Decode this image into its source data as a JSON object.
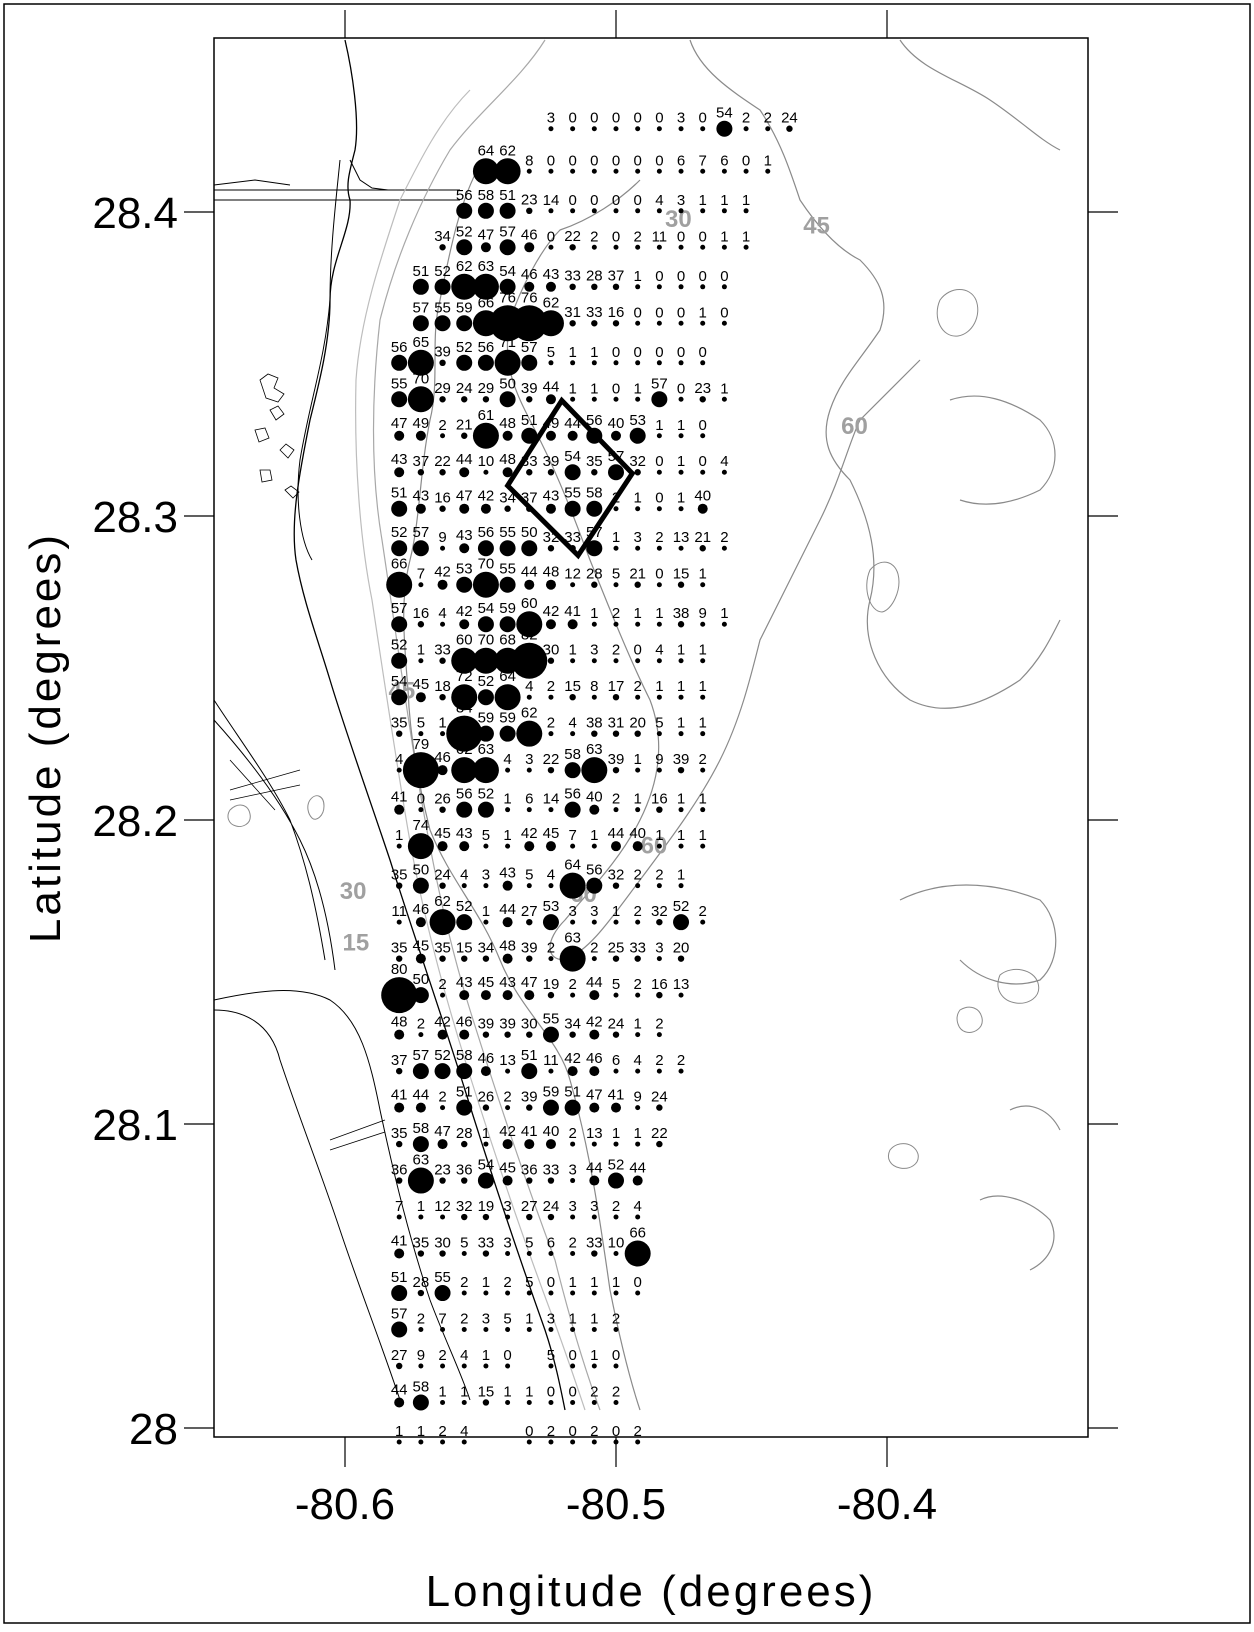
{
  "chart_data": {
    "type": "scatter",
    "title": "",
    "xlabel": "Longitude (degrees)",
    "ylabel": "Latitude (degrees)",
    "xlim": [
      -80.65,
      -80.33
    ],
    "ylim": [
      27.99,
      28.46
    ],
    "xticks": [
      {
        "value": -80.6,
        "label": "-80.6"
      },
      {
        "value": -80.5,
        "label": "-80.5"
      },
      {
        "value": -80.4,
        "label": "-80.4"
      }
    ],
    "yticks": [
      {
        "value": 28.4,
        "label": "28.4"
      },
      {
        "value": 28.3,
        "label": "28.3"
      },
      {
        "value": 28.2,
        "label": "28.2"
      },
      {
        "value": 28.1,
        "label": "28.1"
      },
      {
        "value": 28,
        "label": "28"
      }
    ],
    "grid": false,
    "marker_sizing": "marker size increases with value",
    "contour_levels": [
      {
        "label": "15",
        "lon": -80.596,
        "lat": 28.157
      },
      {
        "label": "30",
        "lon": -80.597,
        "lat": 28.174
      },
      {
        "label": "45",
        "lon": -80.579,
        "lat": 28.24
      },
      {
        "label": "60",
        "lon": -80.512,
        "lat": 28.173
      },
      {
        "label": "60",
        "lon": -80.486,
        "lat": 28.189
      },
      {
        "label": "30",
        "lon": -80.477,
        "lat": 28.395
      },
      {
        "label": "45",
        "lon": -80.426,
        "lat": 28.393
      },
      {
        "label": "60",
        "lon": -80.412,
        "lat": 28.327
      }
    ],
    "highlight_box": [
      {
        "lon": -80.52,
        "lat": 28.338
      },
      {
        "lon": -80.494,
        "lat": 28.314
      },
      {
        "lon": -80.514,
        "lat": 28.287
      },
      {
        "lon": -80.54,
        "lat": 28.31
      }
    ],
    "stations": [
      {
        "lat": 28.432,
        "cols": [
          "",
          "",
          "",
          "",
          "",
          "",
          "",
          "3",
          "0",
          "0",
          "0",
          "0",
          "0",
          "3",
          "0",
          "54",
          "2",
          "2",
          "24"
        ]
      },
      {
        "lat": 28.418,
        "cols": [
          "",
          "",
          "",
          "",
          "64",
          "62",
          "8",
          "0",
          "0",
          "0",
          "0",
          "0",
          "0",
          "6",
          "7",
          "6",
          "0",
          "1"
        ]
      },
      {
        "lat": 28.405,
        "cols": [
          "",
          "",
          "",
          "56",
          "58",
          "51",
          "23",
          "14",
          "0",
          "0",
          "0",
          "0",
          "4",
          "3",
          "1",
          "1",
          "1"
        ]
      },
      {
        "lat": 28.393,
        "cols": [
          "",
          "",
          "34",
          "52",
          "47",
          "57",
          "46",
          "0",
          "22",
          "2",
          "0",
          "2",
          "11",
          "0",
          "0",
          "1",
          "1"
        ]
      },
      {
        "lat": 28.38,
        "cols": [
          "",
          "51",
          "52",
          "62",
          "63",
          "54",
          "46",
          "43",
          "33",
          "28",
          "37",
          "1",
          "0",
          "0",
          "0",
          "0"
        ]
      },
      {
        "lat": 28.368,
        "cols": [
          "",
          "57",
          "55",
          "59",
          "66",
          "76",
          "76",
          "62",
          "31",
          "33",
          "16",
          "0",
          "0",
          "0",
          "1",
          "0"
        ]
      },
      {
        "lat": 28.355,
        "cols": [
          "56",
          "65",
          "39",
          "52",
          "56",
          "71",
          "57",
          "5",
          "1",
          "1",
          "0",
          "0",
          "0",
          "0",
          "0"
        ]
      },
      {
        "lat": 28.343,
        "cols": [
          "55",
          "70",
          "29",
          "24",
          "29",
          "50",
          "39",
          "44",
          "1",
          "1",
          "0",
          "1",
          "57",
          "0",
          "23",
          "1"
        ]
      },
      {
        "lat": 28.331,
        "cols": [
          "47",
          "49",
          "2",
          "21",
          "61",
          "48",
          "51",
          "49",
          "44",
          "56",
          "40",
          "53",
          "1",
          "1",
          "0"
        ]
      },
      {
        "lat": 28.319,
        "cols": [
          "43",
          "37",
          "22",
          "44",
          "10",
          "48",
          "33",
          "39",
          "54",
          "35",
          "57",
          "32",
          "0",
          "1",
          "0",
          "4"
        ]
      },
      {
        "lat": 28.307,
        "cols": [
          "51",
          "43",
          "16",
          "47",
          "42",
          "34",
          "37",
          "43",
          "55",
          "58",
          "2",
          "1",
          "0",
          "1",
          "40"
        ]
      },
      {
        "lat": 28.294,
        "cols": [
          "52",
          "57",
          "9",
          "43",
          "56",
          "55",
          "50",
          "32",
          "33",
          "57",
          "1",
          "3",
          "2",
          "13",
          "21",
          "2"
        ]
      },
      {
        "lat": 28.282,
        "cols": [
          "66",
          "7",
          "42",
          "53",
          "70",
          "55",
          "44",
          "48",
          "12",
          "28",
          "5",
          "21",
          "0",
          "15",
          "1"
        ]
      },
      {
        "lat": 28.269,
        "cols": [
          "57",
          "16",
          "4",
          "42",
          "54",
          "59",
          "60",
          "42",
          "41",
          "1",
          "2",
          "1",
          "1",
          "38",
          "9",
          "1"
        ]
      },
      {
        "lat": 28.257,
        "cols": [
          "52",
          "1",
          "33",
          "60",
          "70",
          "68",
          "82",
          "30",
          "1",
          "3",
          "2",
          "0",
          "4",
          "1",
          "1"
        ]
      },
      {
        "lat": 28.245,
        "cols": [
          "54",
          "45",
          "18",
          "72",
          "52",
          "64",
          "4",
          "2",
          "15",
          "8",
          "17",
          "2",
          "1",
          "1",
          "1"
        ]
      },
      {
        "lat": 28.233,
        "cols": [
          "35",
          "5",
          "1",
          "84",
          "59",
          "59",
          "62",
          "2",
          "4",
          "38",
          "31",
          "20",
          "5",
          "1",
          "1"
        ]
      },
      {
        "lat": 28.221,
        "cols": [
          "4",
          "79",
          "46",
          "62",
          "63",
          "4",
          "3",
          "22",
          "58",
          "63",
          "39",
          "1",
          "9",
          "39",
          "2"
        ]
      },
      {
        "lat": 28.208,
        "cols": [
          "41",
          "0",
          "26",
          "56",
          "52",
          "1",
          "6",
          "14",
          "56",
          "40",
          "2",
          "1",
          "16",
          "1",
          "1"
        ]
      },
      {
        "lat": 28.196,
        "cols": [
          "1",
          "74",
          "45",
          "43",
          "5",
          "1",
          "42",
          "45",
          "7",
          "1",
          "44",
          "40",
          "1",
          "1",
          "1"
        ]
      },
      {
        "lat": 28.183,
        "cols": [
          "35",
          "50",
          "24",
          "4",
          "3",
          "43",
          "5",
          "4",
          "64",
          "56",
          "32",
          "2",
          "2",
          "1"
        ]
      },
      {
        "lat": 28.171,
        "cols": [
          "11",
          "46",
          "62",
          "52",
          "1",
          "44",
          "27",
          "53",
          "3",
          "3",
          "1",
          "2",
          "32",
          "52",
          "2"
        ]
      },
      {
        "lat": 28.159,
        "cols": [
          "35",
          "45",
          "35",
          "15",
          "34",
          "48",
          "39",
          "2",
          "63",
          "2",
          "25",
          "33",
          "3",
          "20"
        ]
      },
      {
        "lat": 28.147,
        "cols": [
          "80",
          "50",
          "2",
          "43",
          "45",
          "43",
          "47",
          "19",
          "2",
          "44",
          "5",
          "2",
          "16",
          "13"
        ]
      },
      {
        "lat": 28.134,
        "cols": [
          "48",
          "2",
          "42",
          "46",
          "39",
          "39",
          "30",
          "55",
          "34",
          "42",
          "24",
          "1",
          "2"
        ]
      },
      {
        "lat": 28.122,
        "cols": [
          "37",
          "57",
          "52",
          "58",
          "46",
          "13",
          "51",
          "11",
          "42",
          "46",
          "6",
          "4",
          "2",
          "2"
        ]
      },
      {
        "lat": 28.11,
        "cols": [
          "41",
          "44",
          "2",
          "51",
          "26",
          "2",
          "39",
          "59",
          "51",
          "47",
          "41",
          "9",
          "24"
        ]
      },
      {
        "lat": 28.098,
        "cols": [
          "35",
          "58",
          "47",
          "28",
          "1",
          "42",
          "41",
          "40",
          "2",
          "13",
          "1",
          "1",
          "22"
        ]
      },
      {
        "lat": 28.086,
        "cols": [
          "36",
          "63",
          "23",
          "36",
          "54",
          "45",
          "36",
          "33",
          "3",
          "44",
          "52",
          "44"
        ]
      },
      {
        "lat": 28.074,
        "cols": [
          "7",
          "1",
          "12",
          "32",
          "19",
          "3",
          "27",
          "24",
          "3",
          "3",
          "2",
          "4"
        ]
      },
      {
        "lat": 28.062,
        "cols": [
          "41",
          "35",
          "30",
          "5",
          "33",
          "3",
          "5",
          "6",
          "2",
          "33",
          "10",
          "66"
        ]
      },
      {
        "lat": 28.049,
        "cols": [
          "51",
          "28",
          "55",
          "2",
          "1",
          "2",
          "5",
          "0",
          "1",
          "1",
          "1",
          "0"
        ]
      },
      {
        "lat": 28.037,
        "cols": [
          "57",
          "2",
          "7",
          "2",
          "3",
          "5",
          "1",
          "3",
          "1",
          "1",
          "2"
        ]
      },
      {
        "lat": 28.025,
        "cols": [
          "27",
          "9",
          "2",
          "4",
          "1",
          "0",
          "",
          "5",
          "0",
          "1",
          "0"
        ]
      },
      {
        "lat": 28.013,
        "cols": [
          "44",
          "58",
          "1",
          "1",
          "15",
          "1",
          "1",
          "0",
          "0",
          "2",
          "2"
        ]
      },
      {
        "lat": 28.0,
        "cols": [
          "1",
          "1",
          "2",
          "4",
          "",
          "",
          "0",
          "2",
          "0",
          "2",
          "0",
          "2"
        ]
      }
    ]
  }
}
